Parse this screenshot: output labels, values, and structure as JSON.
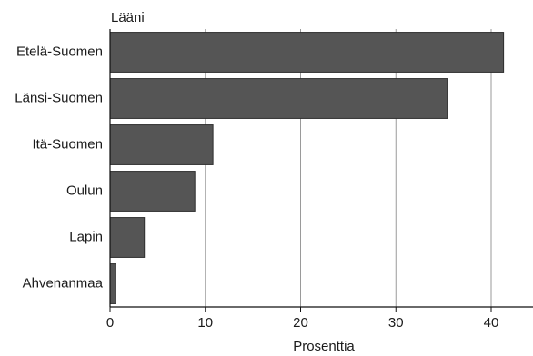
{
  "chart_data": {
    "type": "bar",
    "orientation": "horizontal",
    "title": "",
    "ylabel": "Lääni",
    "xlabel": "Prosenttia",
    "categories": [
      "Etelä-Suomen",
      "Länsi-Suomen",
      "Itä-Suomen",
      "Oulun",
      "Lapin",
      "Ahvenanmaa"
    ],
    "values": [
      41.3,
      35.4,
      10.8,
      8.9,
      3.6,
      0.6
    ],
    "xlim": [
      0,
      45
    ],
    "xticks": [
      0,
      10,
      20,
      30,
      40
    ],
    "grid": "vertical",
    "legend": "none",
    "bar_color": "#555555"
  }
}
